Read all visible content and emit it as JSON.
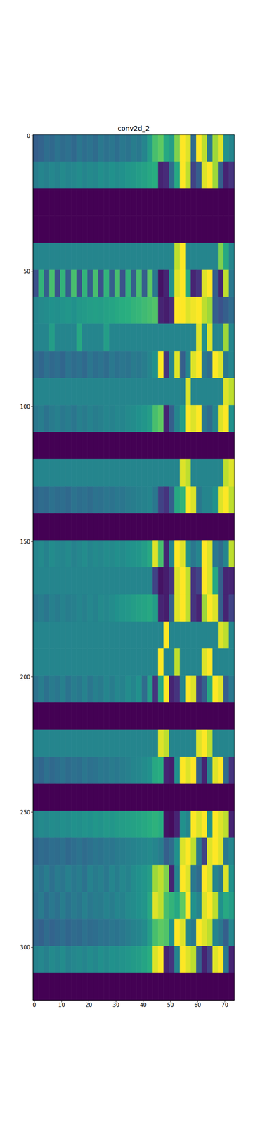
{
  "chart_data": {
    "type": "heatmap",
    "title": "conv2d_2",
    "x_edges": [
      -0.5,
      1.5,
      3.5,
      5.5,
      7.5,
      9.5,
      11.5,
      13.5,
      15.5,
      17.5,
      19.5,
      21.5,
      23.5,
      25.5,
      27.5,
      29.5,
      31.5,
      33.5,
      35.5,
      37.5,
      39.5,
      41.5,
      43.5,
      45.5,
      47.5,
      49.5,
      51.5,
      53.5,
      55.5,
      57.5,
      59.5,
      61.5,
      63.5,
      65.5,
      67.5,
      69.5,
      71.5,
      73.5
    ],
    "y_edges": [
      -0.5,
      9.5,
      19.5,
      29.5,
      39.5,
      49.5,
      59.5,
      69.5,
      79.5,
      89.5,
      99.5,
      109.5,
      119.5,
      129.5,
      139.5,
      149.5,
      159.5,
      169.5,
      179.5,
      189.5,
      199.5,
      209.5,
      219.5,
      229.5,
      239.5,
      249.5,
      259.5,
      269.5,
      279.5,
      289.5,
      299.5,
      309.5,
      319.5
    ],
    "xlim": [
      -0.5,
      73.5
    ],
    "ylim": [
      319.5,
      -0.5
    ],
    "xticks": [
      0,
      10,
      20,
      30,
      40,
      50,
      60,
      70
    ],
    "yticks": [
      0,
      50,
      100,
      150,
      200,
      250,
      300
    ],
    "clim": [
      0,
      1
    ],
    "cells": [
      [
        0.3,
        0.32,
        0.36,
        0.34,
        0.38,
        0.35,
        0.37,
        0.34,
        0.39,
        0.36,
        0.38,
        0.35,
        0.4,
        0.37,
        0.39,
        0.36,
        0.4,
        0.38,
        0.42,
        0.4,
        0.45,
        0.55,
        0.7,
        0.75,
        0.6,
        0.55,
        0.8,
        1.0,
        0.95,
        0.35,
        1.0,
        0.9,
        0.4,
        0.85,
        0.95,
        0.5,
        0.45
      ],
      [
        0.42,
        0.45,
        0.43,
        0.46,
        0.44,
        0.47,
        0.45,
        0.46,
        0.48,
        0.45,
        0.47,
        0.46,
        0.49,
        0.47,
        0.5,
        0.48,
        0.5,
        0.52,
        0.53,
        0.55,
        0.57,
        0.6,
        0.62,
        0.1,
        0.12,
        0.35,
        0.6,
        1.0,
        0.9,
        0.2,
        0.3,
        0.95,
        1.0,
        0.85,
        0.3,
        0.1,
        0.15
      ],
      [
        0,
        0,
        0,
        0,
        0,
        0,
        0,
        0,
        0,
        0,
        0,
        0,
        0,
        0,
        0,
        0,
        0,
        0,
        0,
        0,
        0,
        0,
        0,
        0,
        0,
        0,
        0,
        0,
        0,
        0,
        0,
        0,
        0,
        0,
        0,
        0,
        0
      ],
      [
        0,
        0,
        0,
        0,
        0,
        0,
        0,
        0,
        0,
        0,
        0,
        0,
        0,
        0,
        0,
        0,
        0,
        0,
        0,
        0,
        0,
        0,
        0,
        0,
        0,
        0,
        0,
        0,
        0,
        0,
        0,
        0,
        0,
        0,
        0,
        0,
        0
      ],
      [
        0.45,
        0.45,
        0.45,
        0.45,
        0.45,
        0.45,
        0.45,
        0.45,
        0.45,
        0.45,
        0.45,
        0.45,
        0.45,
        0.45,
        0.45,
        0.45,
        0.45,
        0.45,
        0.45,
        0.45,
        0.45,
        0.45,
        0.45,
        0.45,
        0.45,
        0.45,
        0.9,
        1.0,
        0.45,
        0.45,
        0.45,
        0.45,
        0.45,
        0.45,
        0.8,
        0.6,
        0.45
      ],
      [
        0.25,
        0.65,
        0.3,
        0.7,
        0.25,
        0.65,
        0.3,
        0.7,
        0.25,
        0.65,
        0.3,
        0.7,
        0.25,
        0.65,
        0.3,
        0.7,
        0.25,
        0.65,
        0.3,
        0.7,
        0.3,
        0.75,
        0.4,
        0.05,
        0.1,
        0.5,
        0.95,
        1.0,
        0.6,
        0.1,
        0.15,
        0.95,
        1.0,
        0.3,
        0.1,
        0.9,
        0.4
      ],
      [
        0.45,
        0.47,
        0.48,
        0.5,
        0.49,
        0.51,
        0.52,
        0.5,
        0.53,
        0.54,
        0.55,
        0.56,
        0.55,
        0.57,
        0.58,
        0.6,
        0.62,
        0.63,
        0.65,
        0.66,
        0.68,
        0.7,
        0.72,
        0.1,
        0.08,
        0.12,
        1.0,
        1.0,
        0.95,
        0.98,
        1.0,
        0.9,
        0.85,
        0.3,
        0.25,
        0.3,
        0.35
      ],
      [
        0.45,
        0.45,
        0.45,
        0.55,
        0.45,
        0.45,
        0.45,
        0.45,
        0.6,
        0.45,
        0.45,
        0.45,
        0.45,
        0.55,
        0.45,
        0.45,
        0.45,
        0.45,
        0.45,
        0.45,
        0.45,
        0.45,
        0.45,
        0.45,
        0.45,
        0.45,
        0.45,
        0.45,
        0.45,
        0.45,
        0.95,
        0.5,
        0.95,
        0.45,
        0.45,
        0.85,
        0.45
      ],
      [
        0.35,
        0.33,
        0.37,
        0.34,
        0.36,
        0.33,
        0.38,
        0.35,
        0.37,
        0.34,
        0.39,
        0.36,
        0.38,
        0.35,
        0.4,
        0.37,
        0.39,
        0.38,
        0.41,
        0.4,
        0.42,
        0.45,
        0.5,
        1.0,
        0.15,
        0.45,
        0.95,
        0.3,
        0.45,
        0.95,
        1.0,
        0.4,
        0.35,
        1.0,
        0.95,
        0.4,
        0.45
      ],
      [
        0.45,
        0.45,
        0.45,
        0.45,
        0.45,
        0.45,
        0.45,
        0.45,
        0.45,
        0.45,
        0.45,
        0.45,
        0.45,
        0.45,
        0.45,
        0.45,
        0.45,
        0.45,
        0.45,
        0.45,
        0.45,
        0.45,
        0.45,
        0.45,
        0.45,
        0.45,
        0.45,
        0.45,
        0.95,
        0.45,
        0.45,
        0.45,
        0.45,
        0.45,
        0.45,
        0.95,
        0.9
      ],
      [
        0.4,
        0.42,
        0.38,
        0.41,
        0.43,
        0.4,
        0.42,
        0.39,
        0.43,
        0.41,
        0.44,
        0.42,
        0.43,
        0.45,
        0.44,
        0.46,
        0.45,
        0.47,
        0.48,
        0.5,
        0.52,
        0.55,
        0.7,
        0.75,
        0.1,
        0.3,
        0.45,
        0.55,
        1.0,
        0.95,
        1.0,
        0.4,
        0.35,
        0.45,
        0.95,
        1.0,
        0.5
      ],
      [
        0,
        0,
        0,
        0,
        0,
        0,
        0,
        0,
        0,
        0,
        0,
        0,
        0,
        0,
        0,
        0,
        0,
        0,
        0,
        0,
        0,
        0,
        0,
        0,
        0,
        0,
        0,
        0,
        0,
        0,
        0,
        0,
        0,
        0,
        0,
        0,
        0
      ],
      [
        0.45,
        0.45,
        0.45,
        0.45,
        0.45,
        0.45,
        0.45,
        0.45,
        0.45,
        0.45,
        0.45,
        0.45,
        0.45,
        0.45,
        0.45,
        0.45,
        0.45,
        0.45,
        0.45,
        0.45,
        0.45,
        0.45,
        0.45,
        0.45,
        0.45,
        0.45,
        0.45,
        0.95,
        0.9,
        0.45,
        0.45,
        0.45,
        0.45,
        0.45,
        0.45,
        0.9,
        0.95
      ],
      [
        0.33,
        0.35,
        0.34,
        0.37,
        0.35,
        0.36,
        0.34,
        0.38,
        0.36,
        0.37,
        0.35,
        0.38,
        0.37,
        0.39,
        0.38,
        0.4,
        0.39,
        0.41,
        0.42,
        0.43,
        0.44,
        0.45,
        0.4,
        0.2,
        0.15,
        0.3,
        0.6,
        0.65,
        1.0,
        0.95,
        0.4,
        0.45,
        0.45,
        0.5,
        0.95,
        1.0,
        0.9
      ],
      [
        0,
        0,
        0,
        0,
        0,
        0,
        0,
        0,
        0,
        0,
        0,
        0,
        0,
        0,
        0,
        0,
        0,
        0,
        0,
        0,
        0,
        0,
        0,
        0,
        0,
        0,
        0,
        0,
        0,
        0,
        0,
        0,
        0,
        0,
        0,
        0,
        0
      ],
      [
        0.45,
        0.47,
        0.44,
        0.48,
        0.46,
        0.45,
        0.47,
        0.44,
        0.46,
        0.48,
        0.45,
        0.47,
        0.46,
        0.48,
        0.47,
        0.49,
        0.48,
        0.5,
        0.51,
        0.52,
        0.55,
        0.6,
        0.95,
        0.7,
        0.1,
        0.45,
        1.0,
        0.95,
        0.5,
        0.4,
        0.45,
        1.0,
        0.95,
        0.4,
        0.35,
        0.45,
        0.9
      ],
      [
        0.45,
        0.45,
        0.45,
        0.45,
        0.45,
        0.45,
        0.45,
        0.45,
        0.45,
        0.45,
        0.45,
        0.45,
        0.45,
        0.45,
        0.45,
        0.45,
        0.45,
        0.45,
        0.45,
        0.45,
        0.45,
        0.45,
        0.2,
        0.05,
        0.08,
        0.15,
        0.95,
        1.0,
        0.9,
        0.15,
        0.2,
        1.0,
        0.95,
        0.6,
        0.3,
        0.1,
        0.1
      ],
      [
        0.4,
        0.42,
        0.39,
        0.43,
        0.41,
        0.44,
        0.42,
        0.43,
        0.45,
        0.43,
        0.46,
        0.44,
        0.47,
        0.46,
        0.48,
        0.5,
        0.52,
        0.53,
        0.55,
        0.57,
        0.58,
        0.6,
        0.55,
        0.1,
        0.08,
        0.3,
        0.95,
        1.0,
        0.9,
        0.15,
        0.1,
        0.85,
        1.0,
        0.95,
        0.3,
        0.1,
        0.2
      ],
      [
        0.45,
        0.45,
        0.45,
        0.45,
        0.45,
        0.45,
        0.45,
        0.45,
        0.45,
        0.45,
        0.45,
        0.45,
        0.45,
        0.45,
        0.45,
        0.45,
        0.45,
        0.45,
        0.45,
        0.45,
        0.45,
        0.45,
        0.45,
        0.45,
        1.0,
        0.45,
        0.45,
        0.45,
        0.45,
        0.45,
        0.45,
        0.45,
        0.45,
        0.45,
        0.95,
        0.9,
        0.45
      ],
      [
        0.45,
        0.45,
        0.45,
        0.45,
        0.45,
        0.45,
        0.45,
        0.45,
        0.45,
        0.45,
        0.45,
        0.45,
        0.45,
        0.45,
        0.45,
        0.45,
        0.45,
        0.45,
        0.45,
        0.45,
        0.45,
        0.45,
        0.45,
        1.0,
        0.45,
        0.45,
        0.9,
        0.45,
        0.45,
        0.45,
        0.45,
        0.95,
        1.0,
        0.45,
        0.45,
        0.45,
        0.45
      ],
      [
        0.38,
        0.42,
        0.37,
        0.41,
        0.39,
        0.43,
        0.38,
        0.42,
        0.4,
        0.44,
        0.39,
        0.43,
        0.41,
        0.45,
        0.42,
        0.46,
        0.44,
        0.48,
        0.45,
        0.5,
        0.35,
        0.55,
        0.15,
        0.6,
        1.0,
        0.1,
        0.15,
        0.45,
        1.0,
        0.95,
        0.2,
        0.3,
        0.6,
        1.0,
        0.95,
        0.3,
        0.4
      ],
      [
        0,
        0,
        0,
        0,
        0,
        0,
        0,
        0,
        0,
        0,
        0,
        0,
        0,
        0,
        0,
        0,
        0,
        0,
        0,
        0,
        0,
        0,
        0,
        0,
        0,
        0,
        0,
        0,
        0,
        0,
        0,
        0,
        0,
        0,
        0,
        0,
        0
      ],
      [
        0.45,
        0.45,
        0.45,
        0.45,
        0.45,
        0.45,
        0.45,
        0.45,
        0.45,
        0.45,
        0.45,
        0.45,
        0.45,
        0.45,
        0.45,
        0.45,
        0.45,
        0.45,
        0.45,
        0.45,
        0.45,
        0.45,
        0.45,
        0.95,
        0.9,
        0.45,
        0.45,
        0.45,
        0.45,
        0.45,
        0.95,
        1.0,
        0.9,
        0.45,
        0.45,
        0.45,
        0.45
      ],
      [
        0.35,
        0.33,
        0.37,
        0.34,
        0.36,
        0.38,
        0.35,
        0.37,
        0.36,
        0.39,
        0.37,
        0.38,
        0.4,
        0.39,
        0.41,
        0.4,
        0.42,
        0.43,
        0.45,
        0.46,
        0.48,
        0.5,
        0.6,
        0.62,
        0.1,
        0.08,
        0.5,
        1.0,
        0.95,
        1.0,
        0.3,
        0.1,
        0.45,
        0.95,
        1.0,
        0.35,
        0.15
      ],
      [
        0,
        0,
        0,
        0,
        0,
        0,
        0,
        0,
        0,
        0,
        0,
        0,
        0,
        0,
        0,
        0,
        0,
        0,
        0,
        0,
        0,
        0,
        0,
        0,
        0,
        0,
        0,
        0,
        0,
        0,
        0,
        0,
        0,
        0,
        0,
        0,
        0
      ],
      [
        0.45,
        0.47,
        0.46,
        0.48,
        0.47,
        0.49,
        0.48,
        0.5,
        0.49,
        0.51,
        0.5,
        0.52,
        0.51,
        0.53,
        0.52,
        0.54,
        0.55,
        0.56,
        0.57,
        0.58,
        0.6,
        0.62,
        0.64,
        0.62,
        0.05,
        0.03,
        0.1,
        0.5,
        0.45,
        1.0,
        0.95,
        1.0,
        0.5,
        1.0,
        0.95,
        0.9,
        0.1
      ],
      [
        0.33,
        0.35,
        0.34,
        0.36,
        0.35,
        0.37,
        0.34,
        0.36,
        0.38,
        0.35,
        0.37,
        0.39,
        0.38,
        0.4,
        0.39,
        0.41,
        0.42,
        0.43,
        0.44,
        0.45,
        0.46,
        0.47,
        0.45,
        0.42,
        0.3,
        0.35,
        0.5,
        0.95,
        1.0,
        0.9,
        0.4,
        0.2,
        0.95,
        1.0,
        0.95,
        0.4,
        0.45
      ],
      [
        0.4,
        0.38,
        0.42,
        0.37,
        0.41,
        0.39,
        0.43,
        0.4,
        0.42,
        0.38,
        0.44,
        0.41,
        0.43,
        0.4,
        0.45,
        0.42,
        0.46,
        0.44,
        0.48,
        0.5,
        0.52,
        0.55,
        0.85,
        0.9,
        0.8,
        0.1,
        0.45,
        1.0,
        0.95,
        0.4,
        0.35,
        1.0,
        0.95,
        0.45,
        0.4,
        0.95,
        0.5
      ],
      [
        0.38,
        0.41,
        0.36,
        0.4,
        0.37,
        0.42,
        0.38,
        0.41,
        0.39,
        0.43,
        0.4,
        0.42,
        0.41,
        0.44,
        0.42,
        0.45,
        0.44,
        0.47,
        0.48,
        0.5,
        0.52,
        0.6,
        0.95,
        0.9,
        0.7,
        0.65,
        0.6,
        0.75,
        1.0,
        0.5,
        0.45,
        0.95,
        1.0,
        0.9,
        0.5,
        0.6,
        0.55
      ],
      [
        0.33,
        0.31,
        0.35,
        0.32,
        0.34,
        0.36,
        0.33,
        0.35,
        0.34,
        0.37,
        0.35,
        0.36,
        0.38,
        0.37,
        0.39,
        0.38,
        0.4,
        0.42,
        0.44,
        0.45,
        0.48,
        0.55,
        0.7,
        0.75,
        0.72,
        0.5,
        1.0,
        0.95,
        0.45,
        0.4,
        1.0,
        0.95,
        0.9,
        0.45,
        0.4,
        0.3,
        0.45
      ],
      [
        0.44,
        0.46,
        0.43,
        0.47,
        0.45,
        0.48,
        0.44,
        0.46,
        0.47,
        0.45,
        0.48,
        0.46,
        0.49,
        0.47,
        0.5,
        0.49,
        0.51,
        0.52,
        0.54,
        0.55,
        0.58,
        0.62,
        0.95,
        1.0,
        0.1,
        0.15,
        0.45,
        1.0,
        0.95,
        0.9,
        0.3,
        0.1,
        0.2,
        0.95,
        1.0,
        0.4,
        0.1
      ],
      [
        0,
        0,
        0,
        0,
        0,
        0,
        0,
        0,
        0,
        0,
        0,
        0,
        0,
        0,
        0,
        0,
        0,
        0,
        0,
        0,
        0,
        0,
        0,
        0,
        0,
        0,
        0,
        0,
        0,
        0,
        0,
        0,
        0,
        0,
        0,
        0,
        0
      ]
    ]
  }
}
